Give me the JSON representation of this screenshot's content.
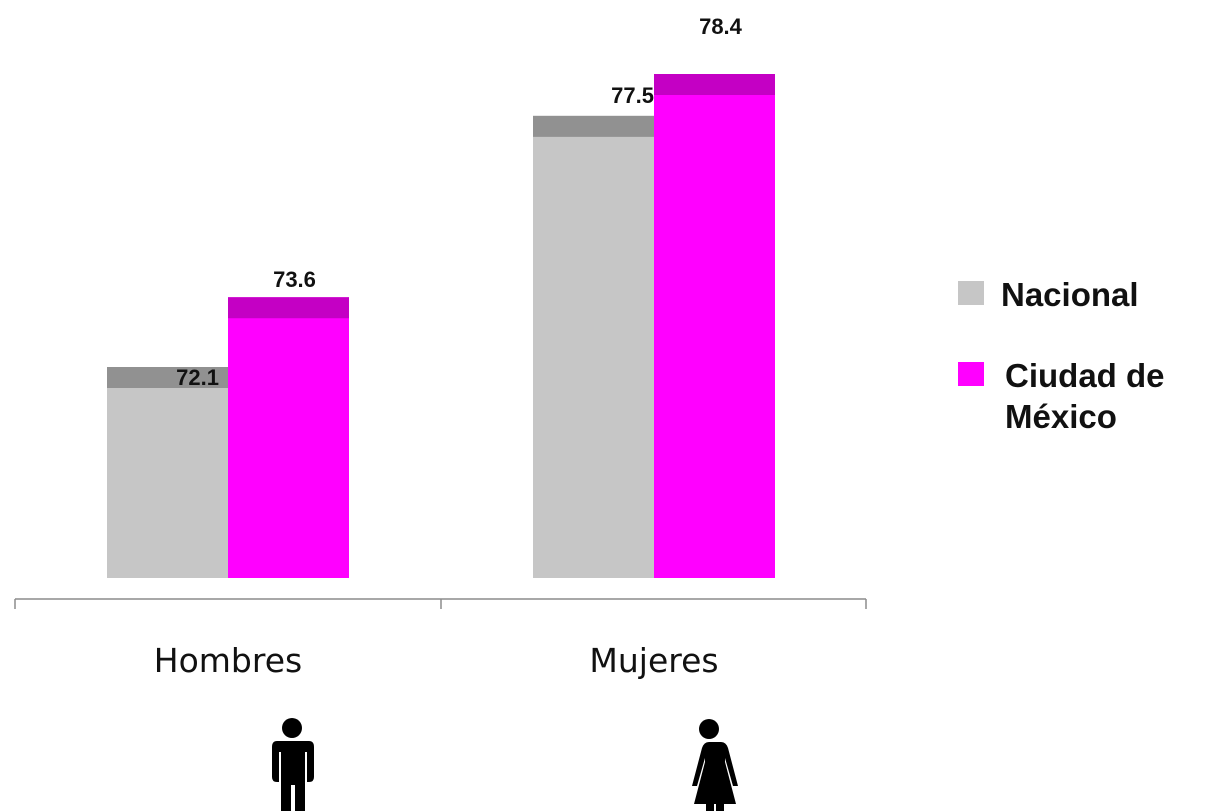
{
  "chart_data": {
    "type": "bar",
    "categories": [
      "Hombres",
      "Mujeres"
    ],
    "series": [
      {
        "name": "Nacional",
        "values": [
          72.1,
          77.5
        ],
        "color": "#c6c6c6",
        "cap_color": "#919191"
      },
      {
        "name": "Ciudad de México",
        "values": [
          73.6,
          78.4
        ],
        "color": "#ff00ff",
        "cap_color": "#c400c4"
      }
    ],
    "data_labels": [
      [
        "72.1",
        "77.5"
      ],
      [
        "73.6",
        "78.4"
      ]
    ],
    "legend": {
      "position": "right",
      "entries": [
        {
          "lines": [
            "Nacional"
          ]
        },
        {
          "lines": [
            "Ciudad de",
            "México"
          ]
        }
      ]
    },
    "category_icons": [
      "man-icon",
      "woman-icon"
    ],
    "axis_color": "#8c8c8c",
    "grid": false
  }
}
